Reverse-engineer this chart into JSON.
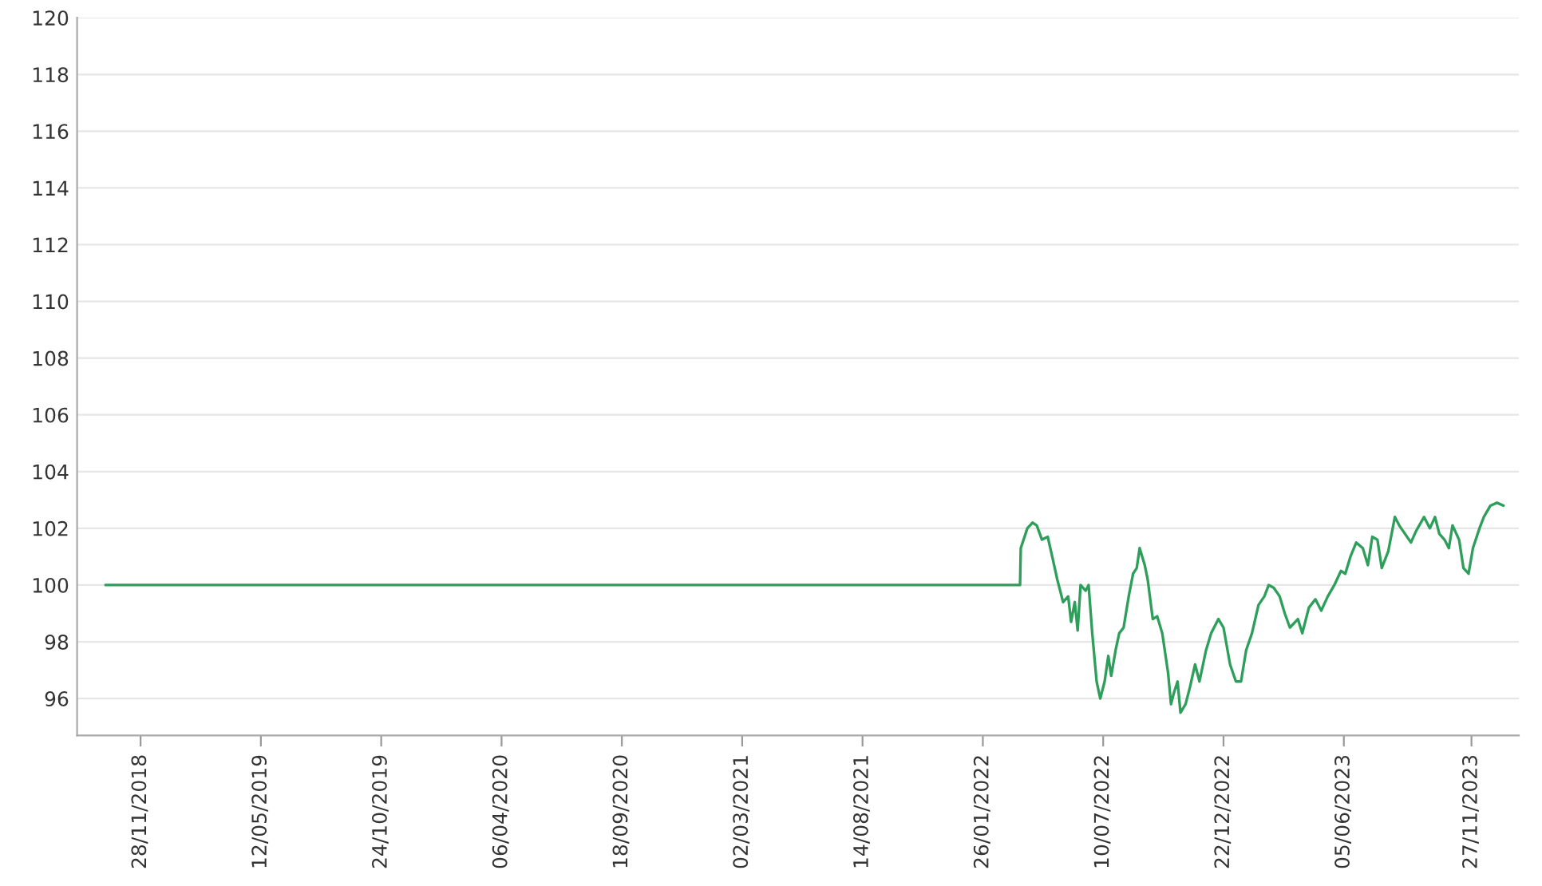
{
  "chart_data": {
    "type": "line",
    "color": "#2e9e5b",
    "grid": "y",
    "marker": "none",
    "line_style": "solid",
    "xlim": [
      "2018-09-02",
      "2024-01-31"
    ],
    "ylim": [
      94.7,
      120
    ],
    "yticks": [
      96,
      98,
      100,
      102,
      104,
      106,
      108,
      110,
      112,
      114,
      116,
      118,
      120
    ],
    "xticks": [
      {
        "value": "2018-11-28",
        "label": "28/11/2018"
      },
      {
        "value": "2019-05-12",
        "label": "12/05/2019"
      },
      {
        "value": "2019-10-24",
        "label": "24/10/2019"
      },
      {
        "value": "2020-04-06",
        "label": "06/04/2020"
      },
      {
        "value": "2020-09-18",
        "label": "18/09/2020"
      },
      {
        "value": "2021-03-02",
        "label": "02/03/2021"
      },
      {
        "value": "2021-08-14",
        "label": "14/08/2021"
      },
      {
        "value": "2022-01-26",
        "label": "26/01/2022"
      },
      {
        "value": "2022-07-10",
        "label": "10/07/2022"
      },
      {
        "value": "2022-12-22",
        "label": "22/12/2022"
      },
      {
        "value": "2023-06-05",
        "label": "05/06/2023"
      },
      {
        "value": "2023-11-27",
        "label": "27/11/2023"
      }
    ],
    "x": [
      "2018-10-11",
      "2022-03-18",
      "2022-03-19",
      "2022-03-28",
      "2022-04-04",
      "2022-04-10",
      "2022-04-17",
      "2022-04-25",
      "2022-05-02",
      "2022-05-08",
      "2022-05-16",
      "2022-05-23",
      "2022-05-27",
      "2022-06-01",
      "2022-06-05",
      "2022-06-09",
      "2022-06-16",
      "2022-06-20",
      "2022-06-25",
      "2022-07-01",
      "2022-07-06",
      "2022-07-12",
      "2022-07-17",
      "2022-07-21",
      "2022-07-27",
      "2022-08-01",
      "2022-08-07",
      "2022-08-14",
      "2022-08-20",
      "2022-08-25",
      "2022-08-29",
      "2022-09-05",
      "2022-09-09",
      "2022-09-16",
      "2022-09-22",
      "2022-09-29",
      "2022-10-07",
      "2022-10-11",
      "2022-10-15",
      "2022-10-20",
      "2022-10-24",
      "2022-10-31",
      "2022-11-06",
      "2022-11-13",
      "2022-11-19",
      "2022-11-28",
      "2022-12-05",
      "2022-12-15",
      "2022-12-22",
      "2022-12-31",
      "2023-01-08",
      "2023-01-15",
      "2023-01-22",
      "2023-01-30",
      "2023-02-08",
      "2023-02-16",
      "2023-02-22",
      "2023-03-01",
      "2023-03-09",
      "2023-03-16",
      "2023-03-23",
      "2023-04-03",
      "2023-04-09",
      "2023-04-18",
      "2023-04-27",
      "2023-05-05",
      "2023-05-14",
      "2023-05-23",
      "2023-06-01",
      "2023-06-07",
      "2023-06-14",
      "2023-06-22",
      "2023-07-01",
      "2023-07-08",
      "2023-07-14",
      "2023-07-21",
      "2023-07-27",
      "2023-08-05",
      "2023-08-14",
      "2023-08-20",
      "2023-09-05",
      "2023-09-12",
      "2023-09-23",
      "2023-10-01",
      "2023-10-08",
      "2023-10-14",
      "2023-10-21",
      "2023-10-27",
      "2023-11-01",
      "2023-11-10",
      "2023-11-16",
      "2023-11-23",
      "2023-11-29",
      "2023-12-08",
      "2023-12-14",
      "2023-12-23",
      "2024-01-01",
      "2024-01-10"
    ],
    "values": [
      100,
      100,
      101.3,
      102.0,
      102.2,
      102.1,
      101.6,
      101.7,
      100.9,
      100.2,
      99.4,
      99.6,
      98.7,
      99.4,
      98.4,
      100.0,
      99.8,
      100.0,
      98.3,
      96.6,
      96.0,
      96.6,
      97.5,
      96.8,
      97.7,
      98.3,
      98.5,
      99.6,
      100.4,
      100.6,
      101.3,
      100.7,
      100.2,
      98.8,
      98.9,
      98.3,
      96.9,
      95.8,
      96.2,
      96.6,
      95.5,
      95.8,
      96.4,
      97.2,
      96.6,
      97.7,
      98.3,
      98.8,
      98.5,
      97.2,
      96.6,
      96.6,
      97.7,
      98.3,
      99.3,
      99.6,
      100.0,
      99.9,
      99.6,
      99.0,
      98.5,
      98.8,
      98.3,
      99.2,
      99.5,
      99.1,
      99.6,
      100.0,
      100.5,
      100.4,
      101.0,
      101.5,
      101.3,
      100.7,
      101.7,
      101.6,
      100.6,
      101.2,
      102.4,
      102.1,
      101.5,
      101.9,
      102.4,
      102.0,
      102.4,
      101.8,
      101.6,
      101.3,
      102.1,
      101.6,
      100.6,
      100.4,
      101.3,
      102.0,
      102.4,
      102.8,
      102.9,
      102.8
    ]
  }
}
